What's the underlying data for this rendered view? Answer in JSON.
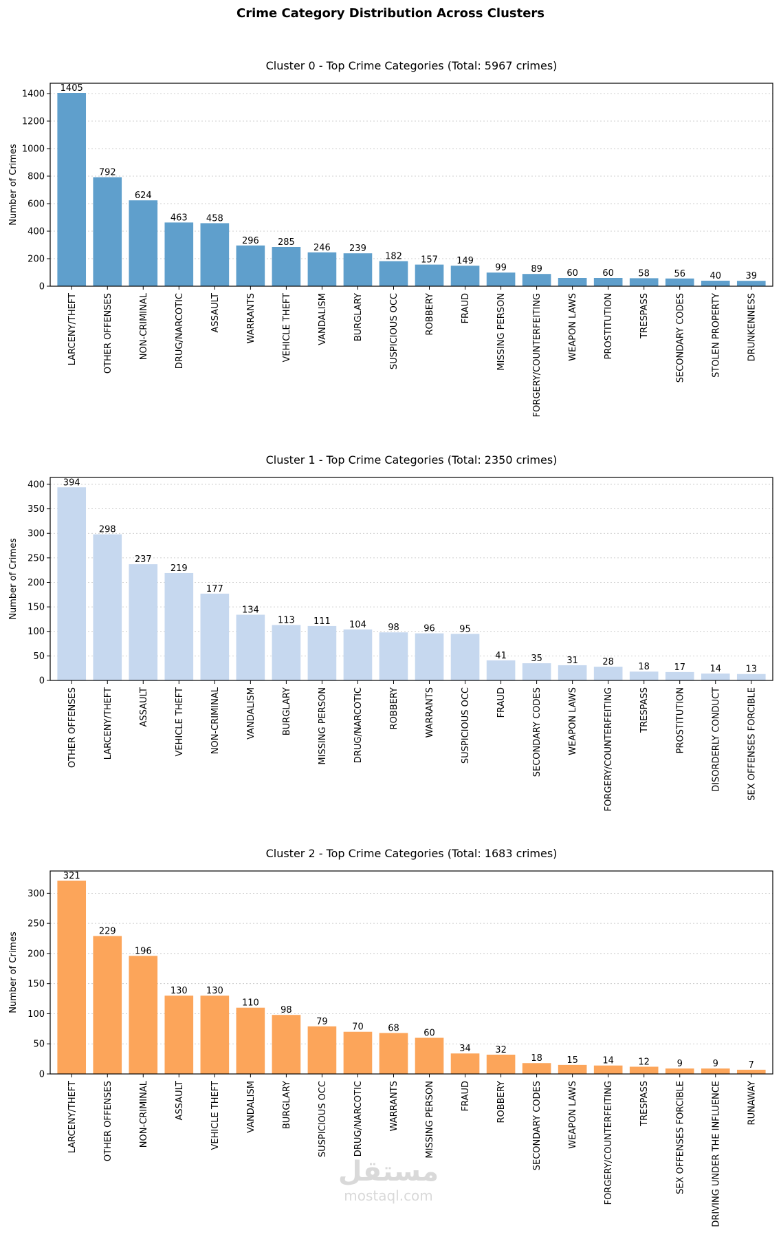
{
  "figure": {
    "suptitle": "Crime Category Distribution Across Clusters",
    "watermark": {
      "logo_text": "مستقل",
      "url": "mostaql.com"
    }
  },
  "chart_data": [
    {
      "type": "bar",
      "title": "Cluster 0 - Top Crime Categories (Total: 5967 crimes)",
      "ylabel": "Number of Crimes",
      "xlabel": "",
      "color": "#5f9fcc",
      "ylim": [
        0,
        1475
      ],
      "yticks": [
        0,
        200,
        400,
        600,
        800,
        1000,
        1200,
        1400
      ],
      "grid": "y-dotted",
      "categories": [
        "LARCENY/THEFT",
        "OTHER OFFENSES",
        "NON-CRIMINAL",
        "DRUG/NARCOTIC",
        "ASSAULT",
        "WARRANTS",
        "VEHICLE THEFT",
        "VANDALISM",
        "BURGLARY",
        "SUSPICIOUS OCC",
        "ROBBERY",
        "FRAUD",
        "MISSING PERSON",
        "FORGERY/COUNTERFEITING",
        "WEAPON LAWS",
        "PROSTITUTION",
        "TRESPASS",
        "SECONDARY CODES",
        "STOLEN PROPERTY",
        "DRUNKENNESS"
      ],
      "values": [
        1405,
        792,
        624,
        463,
        458,
        296,
        285,
        246,
        239,
        182,
        157,
        149,
        99,
        89,
        60,
        60,
        58,
        56,
        40,
        39
      ]
    },
    {
      "type": "bar",
      "title": "Cluster 1 - Top Crime Categories (Total: 2350 crimes)",
      "ylabel": "Number of Crimes",
      "xlabel": "",
      "color": "#c6d8ef",
      "ylim": [
        0,
        414
      ],
      "yticks": [
        0,
        50,
        100,
        150,
        200,
        250,
        300,
        350,
        400
      ],
      "grid": "y-dotted",
      "categories": [
        "OTHER OFFENSES",
        "LARCENY/THEFT",
        "ASSAULT",
        "VEHICLE THEFT",
        "NON-CRIMINAL",
        "VANDALISM",
        "BURGLARY",
        "MISSING PERSON",
        "DRUG/NARCOTIC",
        "ROBBERY",
        "WARRANTS",
        "SUSPICIOUS OCC",
        "FRAUD",
        "SECONDARY CODES",
        "WEAPON LAWS",
        "FORGERY/COUNTERFEITING",
        "TRESPASS",
        "PROSTITUTION",
        "DISORDERLY CONDUCT",
        "SEX OFFENSES FORCIBLE"
      ],
      "values": [
        394,
        298,
        237,
        219,
        177,
        134,
        113,
        111,
        104,
        98,
        96,
        95,
        41,
        35,
        31,
        28,
        18,
        17,
        14,
        13
      ]
    },
    {
      "type": "bar",
      "title": "Cluster 2 - Top Crime Categories (Total: 1683 crimes)",
      "ylabel": "Number of Crimes",
      "xlabel": "",
      "color": "#fca55a",
      "ylim": [
        0,
        337
      ],
      "yticks": [
        0,
        50,
        100,
        150,
        200,
        250,
        300
      ],
      "grid": "y-dotted",
      "categories": [
        "LARCENY/THEFT",
        "OTHER OFFENSES",
        "NON-CRIMINAL",
        "ASSAULT",
        "VEHICLE THEFT",
        "VANDALISM",
        "BURGLARY",
        "SUSPICIOUS OCC",
        "DRUG/NARCOTIC",
        "WARRANTS",
        "MISSING PERSON",
        "FRAUD",
        "ROBBERY",
        "SECONDARY CODES",
        "WEAPON LAWS",
        "FORGERY/COUNTERFEITING",
        "TRESPASS",
        "SEX OFFENSES FORCIBLE",
        "DRIVING UNDER THE INFLUENCE",
        "RUNAWAY"
      ],
      "values": [
        321,
        229,
        196,
        130,
        130,
        110,
        98,
        79,
        70,
        68,
        60,
        34,
        32,
        18,
        15,
        14,
        12,
        9,
        9,
        7
      ]
    }
  ]
}
